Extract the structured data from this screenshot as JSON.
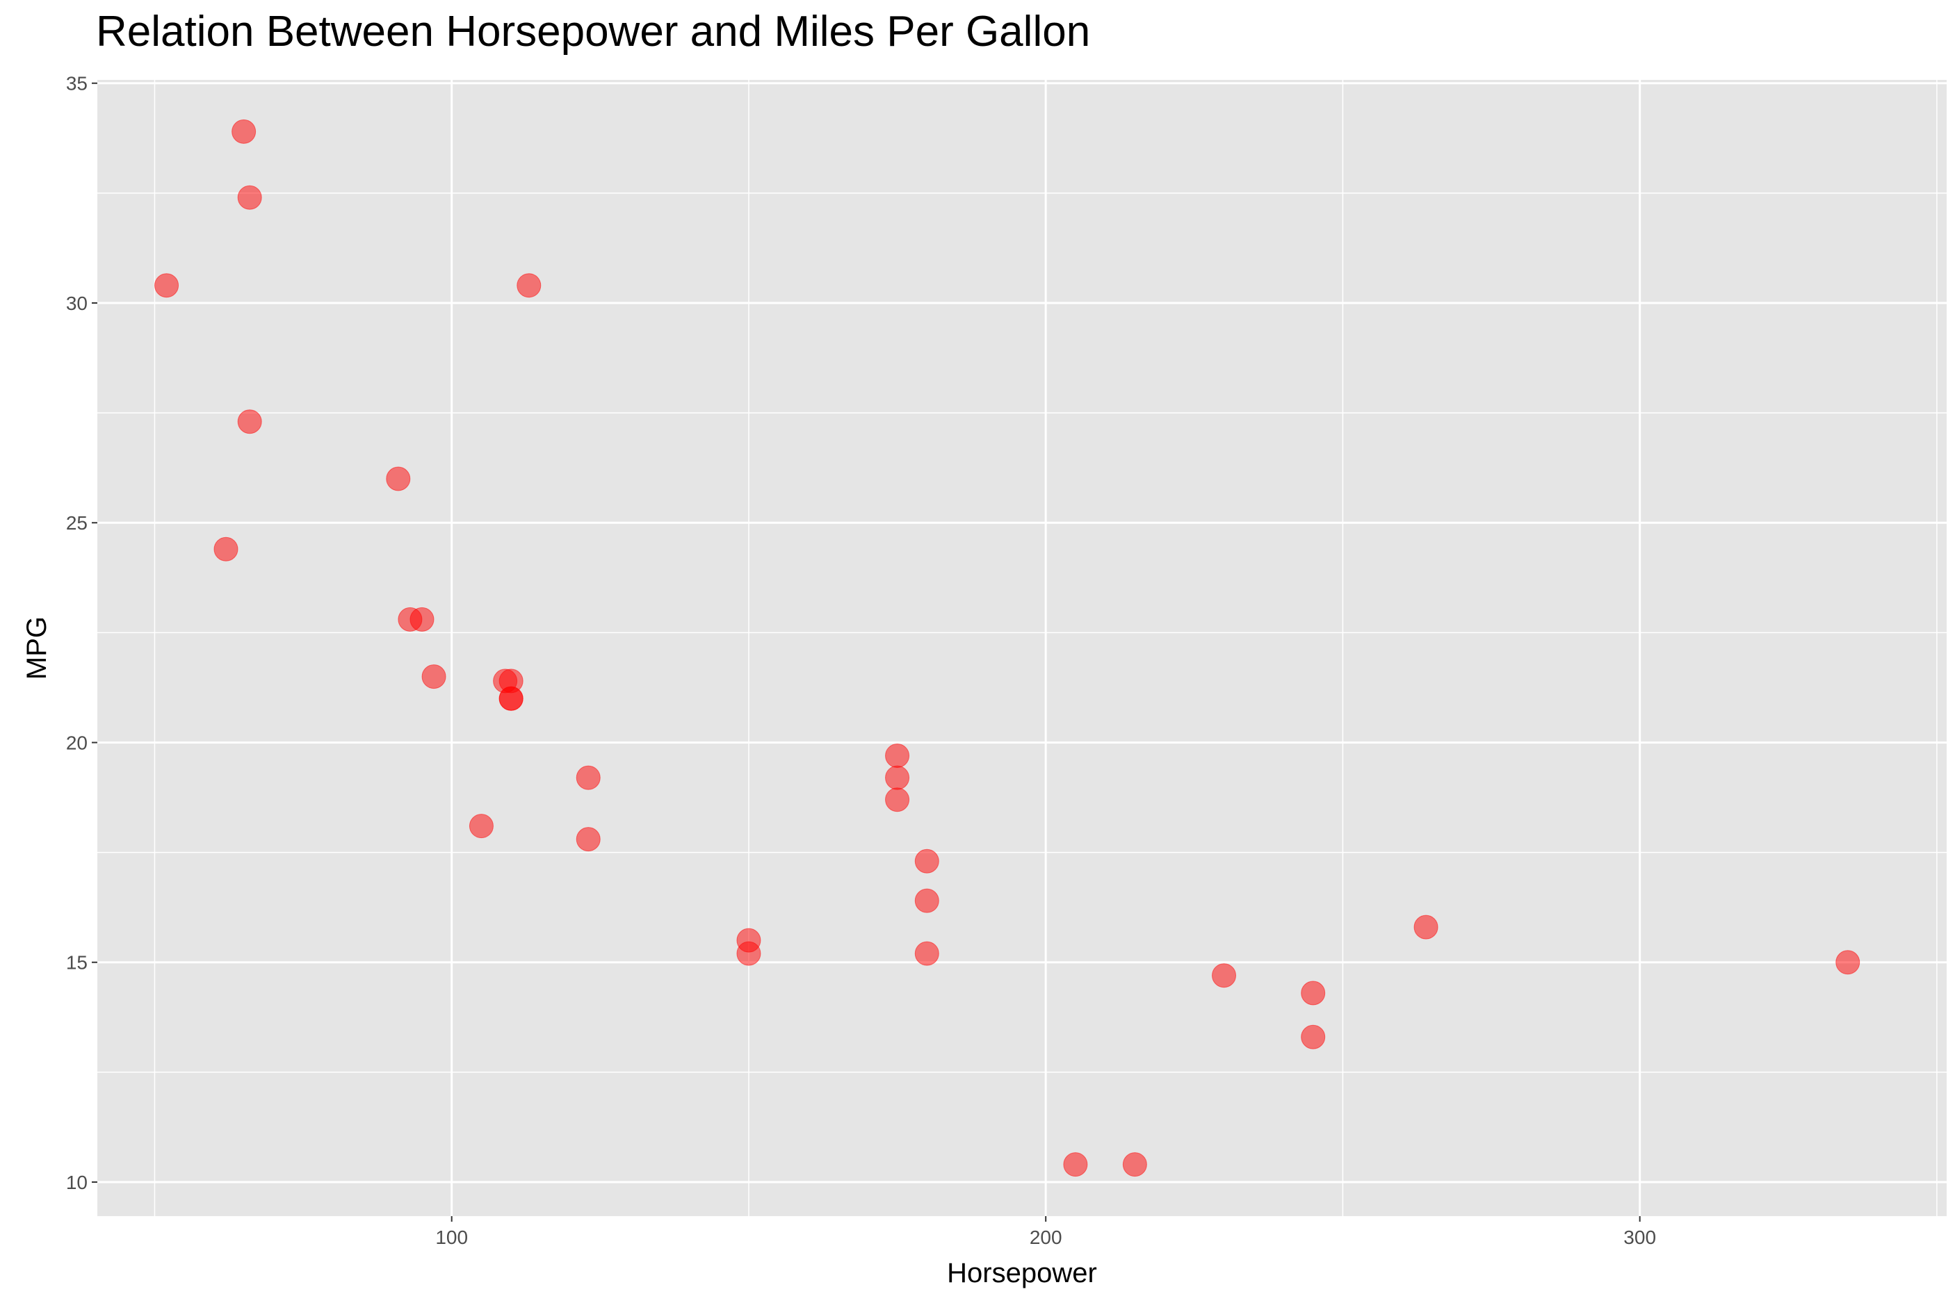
{
  "chart_data": {
    "type": "scatter",
    "title": "Relation Between Horsepower and Miles Per Gallon",
    "xlabel": "Horsepower",
    "ylabel": "MPG",
    "xlim": [
      40.35,
      351.65
    ],
    "ylim": [
      9.225,
      35.075
    ],
    "x_ticks": [
      100,
      200,
      300
    ],
    "y_ticks": [
      10,
      15,
      20,
      25,
      30,
      35
    ],
    "grid": true,
    "legend": "none",
    "point_color": "#FF0000",
    "point_opacity": 0.5,
    "panel_background": "#E5E5E5",
    "grid_color": "#FFFFFF",
    "points": [
      {
        "x": 110,
        "y": 21.0
      },
      {
        "x": 110,
        "y": 21.0
      },
      {
        "x": 93,
        "y": 22.8
      },
      {
        "x": 110,
        "y": 21.4
      },
      {
        "x": 175,
        "y": 18.7
      },
      {
        "x": 105,
        "y": 18.1
      },
      {
        "x": 245,
        "y": 14.3
      },
      {
        "x": 62,
        "y": 24.4
      },
      {
        "x": 95,
        "y": 22.8
      },
      {
        "x": 123,
        "y": 19.2
      },
      {
        "x": 123,
        "y": 17.8
      },
      {
        "x": 180,
        "y": 16.4
      },
      {
        "x": 180,
        "y": 17.3
      },
      {
        "x": 180,
        "y": 15.2
      },
      {
        "x": 205,
        "y": 10.4
      },
      {
        "x": 215,
        "y": 10.4
      },
      {
        "x": 230,
        "y": 14.7
      },
      {
        "x": 66,
        "y": 32.4
      },
      {
        "x": 52,
        "y": 30.4
      },
      {
        "x": 65,
        "y": 33.9
      },
      {
        "x": 97,
        "y": 21.5
      },
      {
        "x": 150,
        "y": 15.5
      },
      {
        "x": 150,
        "y": 15.2
      },
      {
        "x": 245,
        "y": 13.3
      },
      {
        "x": 175,
        "y": 19.2
      },
      {
        "x": 66,
        "y": 27.3
      },
      {
        "x": 91,
        "y": 26.0
      },
      {
        "x": 113,
        "y": 30.4
      },
      {
        "x": 264,
        "y": 15.8
      },
      {
        "x": 175,
        "y": 19.7
      },
      {
        "x": 335,
        "y": 15.0
      },
      {
        "x": 109,
        "y": 21.4
      }
    ]
  }
}
